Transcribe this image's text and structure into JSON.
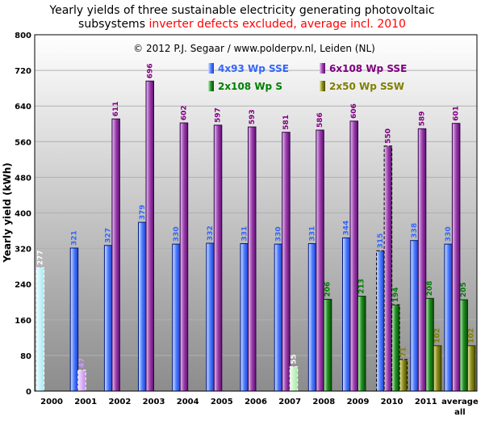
{
  "chart_data": {
    "type": "bar",
    "title_line1": "Yearly yields of three sustainable electricity generating photovoltaic",
    "title_line2_black": "subsystems ",
    "title_line2_red": "inverter defects excluded, average incl. 2010",
    "copyright": "© 2012 P.J. Segaar / www.polderpv.nl, Leiden (NL)",
    "ylabel": "Yearly yield (kWh)",
    "xlabel": "",
    "ylim": [
      0,
      800
    ],
    "yticks": [
      "0",
      "80",
      "160",
      "240",
      "320",
      "400",
      "480",
      "560",
      "640",
      "720",
      "800"
    ],
    "categories": [
      "2000",
      "2001",
      "2002",
      "2003",
      "2004",
      "2005",
      "2006",
      "2007",
      "2008",
      "2009",
      "2010",
      "2011",
      "average"
    ],
    "category_sublabel": "all",
    "grid": true,
    "legend_position": "top-right inside plot",
    "series": [
      {
        "name": "4x93 Wp SSE",
        "color": "#3366ff",
        "values": [
          277,
          321,
          327,
          379,
          330,
          332,
          331,
          330,
          331,
          344,
          315,
          338,
          330
        ],
        "labels": [
          "277",
          "321",
          "327",
          "379",
          "330",
          "332",
          "331",
          "330",
          "331",
          "344",
          "315",
          "338",
          "330"
        ],
        "incomplete_years": [
          "2000",
          "2010"
        ]
      },
      {
        "name": "6x108 Wp SSE",
        "color": "#800080",
        "values": [
          null,
          47,
          611,
          696,
          602,
          597,
          593,
          581,
          586,
          606,
          550,
          589,
          601
        ],
        "labels": [
          "",
          "47",
          "611",
          "696",
          "602",
          "597",
          "593",
          "581",
          "586",
          "606",
          "550",
          "589",
          "601"
        ],
        "incomplete_years": [
          "2001",
          "2010"
        ]
      },
      {
        "name": "2x108 Wp S",
        "color": "#008000",
        "values": [
          null,
          null,
          null,
          null,
          null,
          null,
          null,
          55,
          206,
          213,
          194,
          208,
          205
        ],
        "labels": [
          "",
          "",
          "",
          "",
          "",
          "",
          "",
          "55",
          "206",
          "213",
          "194",
          "208",
          "205"
        ],
        "incomplete_years": [
          "2007",
          "2010"
        ]
      },
      {
        "name": "2x50 Wp SSW",
        "color": "#808000",
        "values": [
          null,
          null,
          null,
          null,
          null,
          null,
          null,
          null,
          null,
          null,
          71,
          102,
          102
        ],
        "labels": [
          "",
          "",
          "",
          "",
          "",
          "",
          "",
          "",
          "",
          "",
          "71",
          "102",
          "102"
        ],
        "incomplete_years": [
          "2010"
        ]
      }
    ]
  }
}
